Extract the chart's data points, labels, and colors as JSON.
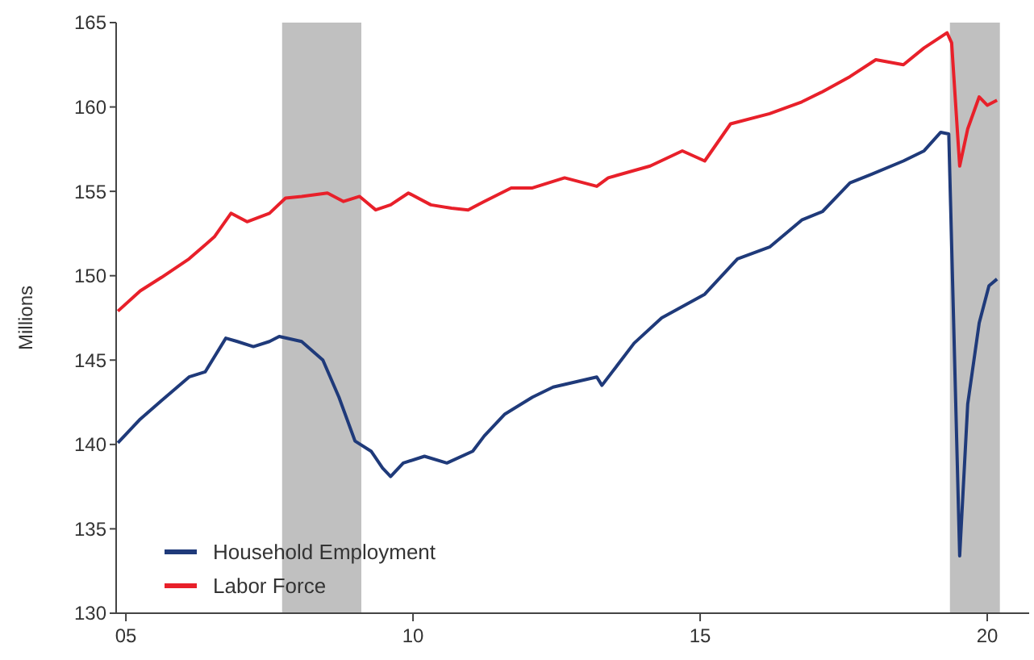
{
  "chart_data": {
    "type": "line",
    "ylabel": "Millions",
    "xlim": [
      2004.83,
      2020.73
    ],
    "ylim": [
      130,
      165
    ],
    "xticks": [
      {
        "value": 2005,
        "label": "05"
      },
      {
        "value": 2010,
        "label": "10"
      },
      {
        "value": 2015,
        "label": "15"
      },
      {
        "value": 2020,
        "label": "20"
      }
    ],
    "yticks": [
      130,
      135,
      140,
      145,
      150,
      155,
      160,
      165
    ],
    "grid": false,
    "legend": "bottom left",
    "marker": "none",
    "line_style": "solid",
    "bands": [
      {
        "axis": "x",
        "from": 2007.72,
        "to": 2009.1,
        "color": "#c0c0c0"
      },
      {
        "axis": "x",
        "from": 2019.35,
        "to": 2020.22,
        "color": "#c0c0c0"
      }
    ],
    "series": [
      {
        "name": "Household Employment",
        "color": "#1f3a7a",
        "x": [
          2004.86,
          2005.25,
          2005.62,
          2006.1,
          2006.38,
          2006.74,
          2006.94,
          2007.22,
          2007.5,
          2007.67,
          2008.06,
          2008.43,
          2008.71,
          2008.99,
          2009.27,
          2009.47,
          2009.61,
          2009.83,
          2010.2,
          2010.59,
          2011.04,
          2011.24,
          2011.6,
          2012.08,
          2012.44,
          2013.2,
          2013.29,
          2013.85,
          2014.33,
          2015.08,
          2015.65,
          2016.21,
          2016.77,
          2017.13,
          2017.61,
          2017.98,
          2018.54,
          2018.9,
          2019.19,
          2019.33,
          2019.52,
          2019.66,
          2019.86,
          2020.03,
          2020.17
        ],
        "values": [
          140.1,
          141.5,
          142.6,
          144,
          144.3,
          146.3,
          146.1,
          145.8,
          146.1,
          146.4,
          146.1,
          145,
          142.8,
          140.2,
          139.6,
          138.6,
          138.1,
          138.9,
          139.3,
          138.9,
          139.6,
          140.5,
          141.8,
          142.8,
          143.4,
          144,
          143.5,
          146,
          147.5,
          148.9,
          151,
          151.7,
          153.3,
          153.8,
          155.5,
          156,
          156.8,
          157.4,
          158.5,
          158.4,
          133.4,
          142.4,
          147.2,
          149.4,
          149.8
        ]
      },
      {
        "name": "Labor Force",
        "color": "#e8202a",
        "x": [
          2004.86,
          2005.25,
          2005.62,
          2006.1,
          2006.54,
          2006.83,
          2007.11,
          2007.5,
          2007.78,
          2008.06,
          2008.51,
          2008.79,
          2009.07,
          2009.35,
          2009.61,
          2009.92,
          2010.31,
          2010.67,
          2010.96,
          2011.24,
          2011.71,
          2012.08,
          2012.64,
          2013.2,
          2013.4,
          2014.13,
          2014.69,
          2015.08,
          2015.53,
          2016.21,
          2016.77,
          2017.13,
          2017.61,
          2018.06,
          2018.54,
          2018.9,
          2019.3,
          2019.38,
          2019.52,
          2019.66,
          2019.86,
          2020.0,
          2020.17
        ],
        "values": [
          147.9,
          149.1,
          149.9,
          151,
          152.3,
          153.7,
          153.2,
          153.7,
          154.6,
          154.7,
          154.9,
          154.4,
          154.7,
          153.9,
          154.2,
          154.9,
          154.2,
          154,
          153.9,
          154.4,
          155.2,
          155.2,
          155.8,
          155.3,
          155.8,
          156.5,
          157.4,
          156.8,
          159,
          159.6,
          160.3,
          160.9,
          161.8,
          162.8,
          162.5,
          163.5,
          164.4,
          163.8,
          156.5,
          158.7,
          160.6,
          160.1,
          160.4
        ]
      }
    ]
  }
}
